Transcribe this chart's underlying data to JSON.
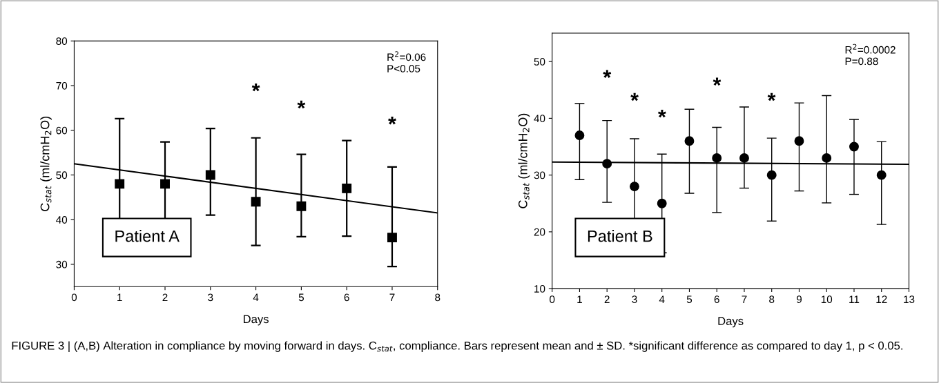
{
  "chart_data": [
    {
      "type": "scatter",
      "xlabel": "Days",
      "ylabel": "C$_{stat}$ (ml/cmH$_{2}$O)",
      "xlim": [
        0,
        8
      ],
      "xticks": [
        0,
        1,
        2,
        3,
        4,
        5,
        6,
        7,
        8
      ],
      "ylim": [
        25,
        80
      ],
      "yticks": [
        30,
        40,
        50,
        60,
        70,
        80
      ],
      "grid": false,
      "legend": false,
      "line_style": "solid",
      "series": [
        {
          "marker": "square",
          "color": "#000000",
          "x": [
            1,
            2,
            3,
            4,
            5,
            6,
            7
          ],
          "values": [
            48,
            48,
            50,
            44,
            43,
            47,
            36
          ],
          "errors": [
            14.6,
            9.4,
            [
              41,
              60.4
            ],
            [
              34.2,
              58.3
            ],
            [
              36.2,
              54.6
            ],
            [
              36.3,
              57.7
            ],
            [
              29.5,
              51.8
            ]
          ]
        },
        {
          "type": "line",
          "color": "#000000",
          "x": [
            0,
            8
          ],
          "values": [
            52.5,
            41.5
          ]
        }
      ],
      "annotations": [
        "R$^{2}$=0.06\nP<0.05",
        "Patient A",
        "*",
        "*",
        "*",
        "FIGURE 3 | (A,B) Alteration in compliance by moving forward in days. C$_{stat}$, compliance. Bars represent mean and ± SD. *significant difference as compared to day 1, p < 0.05."
      ]
    },
    {
      "type": "scatter",
      "xlabel": "Days",
      "ylabel": "C$_{stat}$ (ml/cmH$_{2}$O)",
      "xlim": [
        0,
        13
      ],
      "xticks": [
        0,
        1,
        2,
        3,
        4,
        5,
        6,
        7,
        8,
        9,
        10,
        11,
        12,
        13
      ],
      "ylim": [
        10,
        55
      ],
      "yticks": [
        10,
        20,
        30,
        40,
        50
      ],
      "grid": false,
      "legend": false,
      "line_style": "solid",
      "series": [
        {
          "marker": "circle",
          "color": "#000000",
          "x": [
            1,
            2,
            3,
            4,
            5,
            6,
            7,
            8,
            9,
            10,
            11,
            12
          ],
          "values": [
            37,
            32,
            28,
            25,
            36,
            33,
            33,
            30,
            36,
            33,
            35,
            30
          ],
          "errors": [
            [
              29.2,
              42.6
            ],
            [
              25.2,
              39.6
            ],
            8.4,
            8.7,
            [
              26.8,
              41.6
            ],
            [
              23.4,
              38.4
            ],
            [
              27.7,
              42
            ],
            [
              21.9,
              36.5
            ],
            [
              27.2,
              42.7
            ],
            [
              25.1,
              44
            ],
            [
              26.6,
              39.8
            ],
            [
              21.3,
              35.9
            ]
          ]
        },
        {
          "type": "line",
          "color": "#000000",
          "x": [
            0,
            13
          ],
          "values": [
            32.3,
            31.9
          ]
        }
      ],
      "annotations": [
        "R$^{2}$=0.0002\nP=0.88",
        "Patient B",
        "*",
        "*",
        "*",
        "*",
        "*"
      ]
    }
  ]
}
